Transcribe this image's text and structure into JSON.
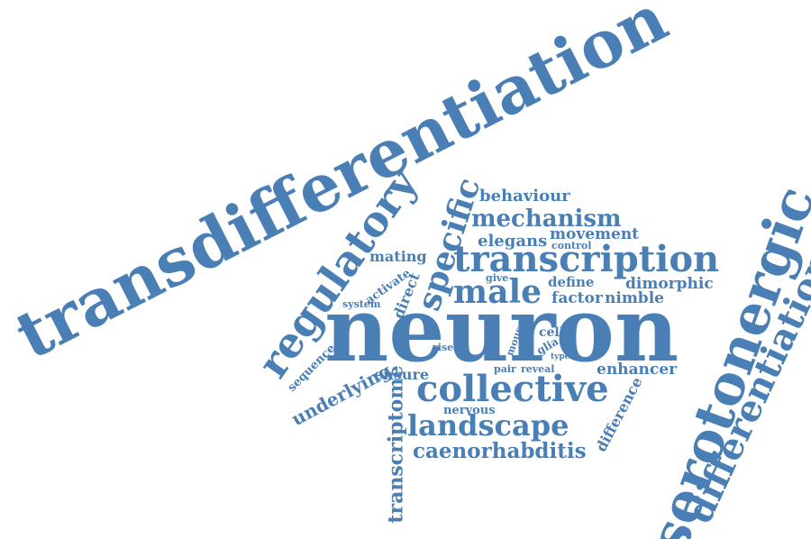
{
  "colors": {
    "text": "#4a7fb5",
    "background": "#ffffff"
  },
  "words": {
    "transdifferentiation": "transdifferentiation",
    "neuron": "neuron",
    "serotonergic": "serotonergic",
    "regulatory": "regulatory",
    "differentiation": "differentiation",
    "transcription": "transcription",
    "collective": "collective",
    "specific": "specific",
    "male": "male",
    "landscape": "landscape",
    "mechanism": "mechanism",
    "caenorhabditis": "caenorhabditis",
    "transcriptome": "transcriptome",
    "underlying": "underlying",
    "behaviour": "behaviour",
    "elegans": "elegans",
    "movement": "movement",
    "factor": "factor",
    "nimble": "nimble",
    "dimorphic": "dimorphic",
    "enhancer": "enhancer",
    "difference": "difference",
    "mating": "mating",
    "ensure": "ensure",
    "define": "define",
    "direct": "direct",
    "sequence": "sequence",
    "activate": "activate",
    "system": "system",
    "give": "give",
    "control": "control",
    "nervous": "nervous",
    "cell": "cell",
    "glia": "glia",
    "mouse": "mouse",
    "rise": "rise",
    "pair": "pair",
    "reveal": "reveal",
    "type": "type"
  }
}
